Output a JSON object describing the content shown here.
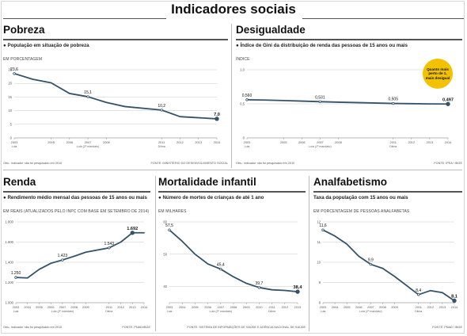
{
  "title": "Indicadores sociais",
  "colors": {
    "line": "#33536b",
    "grid": "#c9c9c9",
    "axis": "#8a8a8a",
    "bubble": "#f2c200"
  },
  "panels": {
    "pobreza": {
      "title": "Pobreza",
      "subtitle": "● População em situação de pobreza",
      "unit": "EM PORCENTAGEM",
      "footnote": "Obs.: indicador não foi pesquisado em 2010",
      "source": "FONTE: MINISTÉRIO DO DESENVOLVIMENTO SOCIAL"
    },
    "desigualdade": {
      "title": "Desigualdade",
      "subtitle": "● Índice de Gini da distribuição de renda das pessoas de 15 anos ou mais",
      "unit": "ÍNDICE",
      "footnote": "Obs.: indicador não foi pesquisado em 2010",
      "source": "FONTE: IPEA / IBGE",
      "bubble": "Quanto mais perto de 1, mais desigual"
    },
    "renda": {
      "title": "Renda",
      "subtitle": "● Rendimento médio mensal das pessoas de 15 anos ou mais",
      "unit": "EM REAIS (ATUALIZADOS PELO INPC COM BASE EM SETEMBRO DE 2014)",
      "footnote": "Obs.: indicador não foi pesquisado em 2010",
      "source": "FONTE: PNAD/IBGE"
    },
    "mortalidade": {
      "title": "Mortalidade infantil",
      "subtitle": "● Número de mortes de crianças de até 1 ano",
      "unit": "EM MILHARES",
      "footnote": "",
      "source": "FONTE: SISTEMA DE INFORMAÇÕES DE SAÚDE E AGÊNCIA NACIONAL DE SAÚDE"
    },
    "analfabetismo": {
      "title": "Analfabetismo",
      "subtitle": "Taxa da população com 15 anos ou mais",
      "unit": "EM PORCENTAGEM DE PESSOAS ANALFABETAS",
      "footnote": "",
      "source": "FONTE: PNAD / IBGE"
    }
  },
  "chart_data": [
    {
      "id": "pobreza",
      "type": "line",
      "x": [
        2003,
        2004,
        2005,
        2006,
        2007,
        2008,
        2009,
        2011,
        2012,
        2013,
        2014
      ],
      "values": [
        23.6,
        21.5,
        20.2,
        16.3,
        15.1,
        13.0,
        11.5,
        10.2,
        7.8,
        7.4,
        7.0
      ],
      "labels": {
        "0": "23,6",
        "4": "15,1",
        "7": "10,2",
        "10": "7,0"
      },
      "ylim": [
        0,
        25
      ],
      "yticks": [
        0,
        5,
        10,
        15,
        20,
        25
      ],
      "ytick_labels": [
        "0",
        "5",
        "10",
        "15",
        "20",
        "25"
      ],
      "xticks": [
        2003,
        2005,
        2006,
        2007,
        2008,
        2011,
        2012,
        2013,
        2014
      ],
      "xtick_labels": [
        "2003",
        "2005",
        "2006",
        "2007",
        "2008",
        "2011",
        "2012",
        "2013",
        "2014"
      ],
      "notes": [
        {
          "x": 2003,
          "text": "Lula"
        },
        {
          "x": 2007,
          "text": "Lula (2º mandato)"
        },
        {
          "x": 2011,
          "text": "Dilma"
        }
      ],
      "grid": true
    },
    {
      "id": "desigualdade",
      "type": "line",
      "x": [
        2003,
        2004,
        2005,
        2006,
        2007,
        2008,
        2009,
        2011,
        2012,
        2013,
        2014
      ],
      "values": [
        0.56,
        0.555,
        0.548,
        0.54,
        0.531,
        0.524,
        0.518,
        0.505,
        0.502,
        0.499,
        0.497
      ],
      "labels": {
        "0": "0,560",
        "4": "0,531",
        "7": "0,505",
        "10": "0,497"
      },
      "ylim": [
        0,
        1
      ],
      "yticks": [
        0,
        0.5,
        1.0
      ],
      "ytick_labels": [
        "0",
        "0,5",
        "1,0"
      ],
      "xticks": [
        2003,
        2005,
        2006,
        2007,
        2008,
        2011,
        2012,
        2013,
        2014
      ],
      "xtick_labels": [
        "2003",
        "2005",
        "2006",
        "2007",
        "2008",
        "2011",
        "2012",
        "2013",
        "2014"
      ],
      "notes": [
        {
          "x": 2003,
          "text": "Lula"
        },
        {
          "x": 2007,
          "text": "Lula (2º mandato)"
        },
        {
          "x": 2011,
          "text": "Dilma"
        }
      ],
      "grid": true
    },
    {
      "id": "renda",
      "type": "line",
      "x": [
        2003,
        2004,
        2005,
        2006,
        2007,
        2008,
        2009,
        2011,
        2012,
        2013,
        2014
      ],
      "values": [
        1250,
        1245,
        1330,
        1390,
        1423,
        1460,
        1500,
        1543,
        1600,
        1692,
        1692
      ],
      "labels": {
        "0": "1.250",
        "4": "1.423",
        "7": "1.543",
        "9": "1.692"
      },
      "ylim": [
        1000,
        1800
      ],
      "yticks": [
        1000,
        1200,
        1400,
        1600,
        1800
      ],
      "ytick_labels": [
        "1.000",
        "1.200",
        "1.400",
        "1.600",
        "1.800"
      ],
      "xticks": [
        2003,
        2004,
        2005,
        2006,
        2007,
        2008,
        2009,
        2011,
        2012,
        2013,
        2014
      ],
      "xtick_labels": [
        "2003",
        "2004",
        "2005",
        "2006",
        "2007",
        "2008",
        "2009",
        "2011",
        "2012",
        "2013",
        "2014"
      ],
      "notes": [
        {
          "x": 2003,
          "text": "Lula"
        },
        {
          "x": 2007,
          "text": "Lula (2º mandato)"
        },
        {
          "x": 2011,
          "text": "Dilma"
        }
      ],
      "grid": true
    },
    {
      "id": "mortalidade",
      "type": "line",
      "x": [
        2003,
        2004,
        2005,
        2006,
        2007,
        2008,
        2009,
        2010,
        2011,
        2012,
        2013
      ],
      "values": [
        57.5,
        54.0,
        50.0,
        47.0,
        45.4,
        43.0,
        41.0,
        39.7,
        39.0,
        38.8,
        38.4
      ],
      "labels": {
        "0": "57,5",
        "4": "45,4",
        "7": "39,7",
        "10": "38,4"
      },
      "ylim": [
        35,
        60
      ],
      "yticks": [
        40,
        50,
        60
      ],
      "ytick_labels": [
        "40",
        "50",
        "60"
      ],
      "xticks": [
        2003,
        2004,
        2005,
        2006,
        2007,
        2008,
        2009,
        2010,
        2011,
        2012,
        2013
      ],
      "xtick_labels": [
        "2003",
        "2004",
        "2005",
        "2006",
        "2007",
        "2008",
        "2009",
        "2010",
        "2011",
        "2012",
        "2013"
      ],
      "notes": [
        {
          "x": 2003,
          "text": "Lula"
        },
        {
          "x": 2007,
          "text": "Lula (2º mandato)"
        },
        {
          "x": 2011,
          "text": "Dilma"
        }
      ],
      "grid": true
    },
    {
      "id": "analfabetismo",
      "type": "line",
      "x": [
        2003,
        2004,
        2005,
        2006,
        2007,
        2008,
        2009,
        2011,
        2012,
        2013,
        2014
      ],
      "values": [
        11.6,
        11.3,
        10.9,
        10.3,
        9.9,
        9.7,
        9.3,
        8.4,
        8.6,
        8.5,
        8.1
      ],
      "labels": {
        "0": "11,6",
        "4": "9,9",
        "7": "8,4",
        "10": "8,1"
      },
      "ylim": [
        8,
        12
      ],
      "yticks": [
        8,
        9,
        10,
        11,
        12
      ],
      "ytick_labels": [
        "8",
        "9",
        "10",
        "11",
        "12"
      ],
      "xticks": [
        2003,
        2004,
        2005,
        2006,
        2007,
        2008,
        2009,
        2011,
        2012,
        2013,
        2014
      ],
      "xtick_labels": [
        "2003",
        "2004",
        "2005",
        "2006",
        "2007",
        "2008",
        "2009",
        "2011",
        "2012",
        "2013",
        "2014"
      ],
      "notes": [
        {
          "x": 2003,
          "text": "Lula"
        },
        {
          "x": 2007,
          "text": "Lula (2º mandato)"
        },
        {
          "x": 2011,
          "text": "Dilma"
        }
      ],
      "grid": true
    }
  ]
}
